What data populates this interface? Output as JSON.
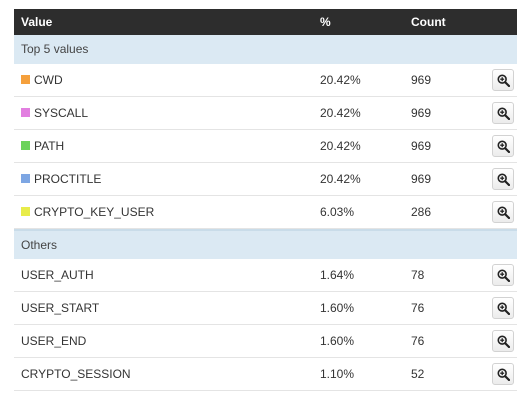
{
  "header": {
    "value": "Value",
    "percent": "%",
    "count": "Count"
  },
  "top": {
    "title": "Top 5 values",
    "rows": [
      {
        "value": "CWD",
        "percent": "20.42%",
        "count": "969",
        "color": "#f5a03c"
      },
      {
        "value": "SYSCALL",
        "percent": "20.42%",
        "count": "969",
        "color": "#e27fe0"
      },
      {
        "value": "PATH",
        "percent": "20.42%",
        "count": "969",
        "color": "#6bd35a"
      },
      {
        "value": "PROCTITLE",
        "percent": "20.42%",
        "count": "969",
        "color": "#7da6e3"
      },
      {
        "value": "CRYPTO_KEY_USER",
        "percent": "6.03%",
        "count": "286",
        "color": "#e8ec4a"
      }
    ]
  },
  "others": {
    "title": "Others",
    "rows": [
      {
        "value": "USER_AUTH",
        "percent": "1.64%",
        "count": "78"
      },
      {
        "value": "USER_START",
        "percent": "1.60%",
        "count": "76"
      },
      {
        "value": "USER_END",
        "percent": "1.60%",
        "count": "76"
      },
      {
        "value": "CRYPTO_SESSION",
        "percent": "1.10%",
        "count": "52"
      }
    ]
  },
  "icons": {
    "row_action": "zoom-in-icon"
  }
}
